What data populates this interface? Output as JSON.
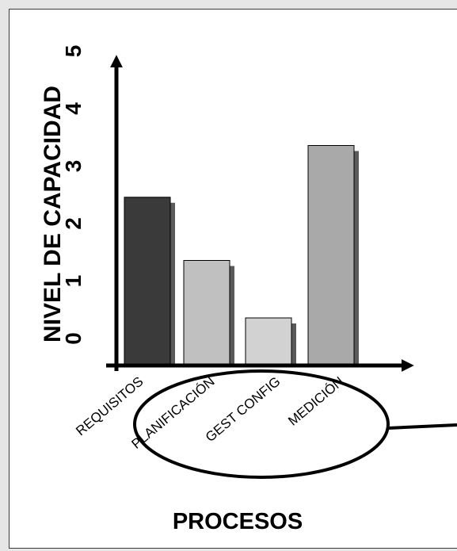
{
  "chart_data": {
    "type": "bar",
    "categories": [
      "REQUISITOS",
      "PLANIFICACIÓN",
      "GEST CONFIG",
      "MEDICIÓN"
    ],
    "values": [
      2.9,
      1.8,
      0.8,
      3.8
    ],
    "xlabel": "PROCESOS",
    "ylabel": "NIVEL DE CAPACIDAD",
    "yticks": [
      "0",
      "1",
      "2",
      "3",
      "4",
      "5"
    ],
    "ylim": [
      0,
      5
    ],
    "grid": false,
    "legend": "none"
  },
  "colors": {
    "bar_fills": [
      "#3a3a3a",
      "#c0c0c0",
      "#d2d2d2",
      "#a9a9a9"
    ],
    "bar_shadow": "#5a5a5a",
    "axis": "#000000",
    "panel": "#ffffff",
    "background": "#e6e6e6"
  }
}
